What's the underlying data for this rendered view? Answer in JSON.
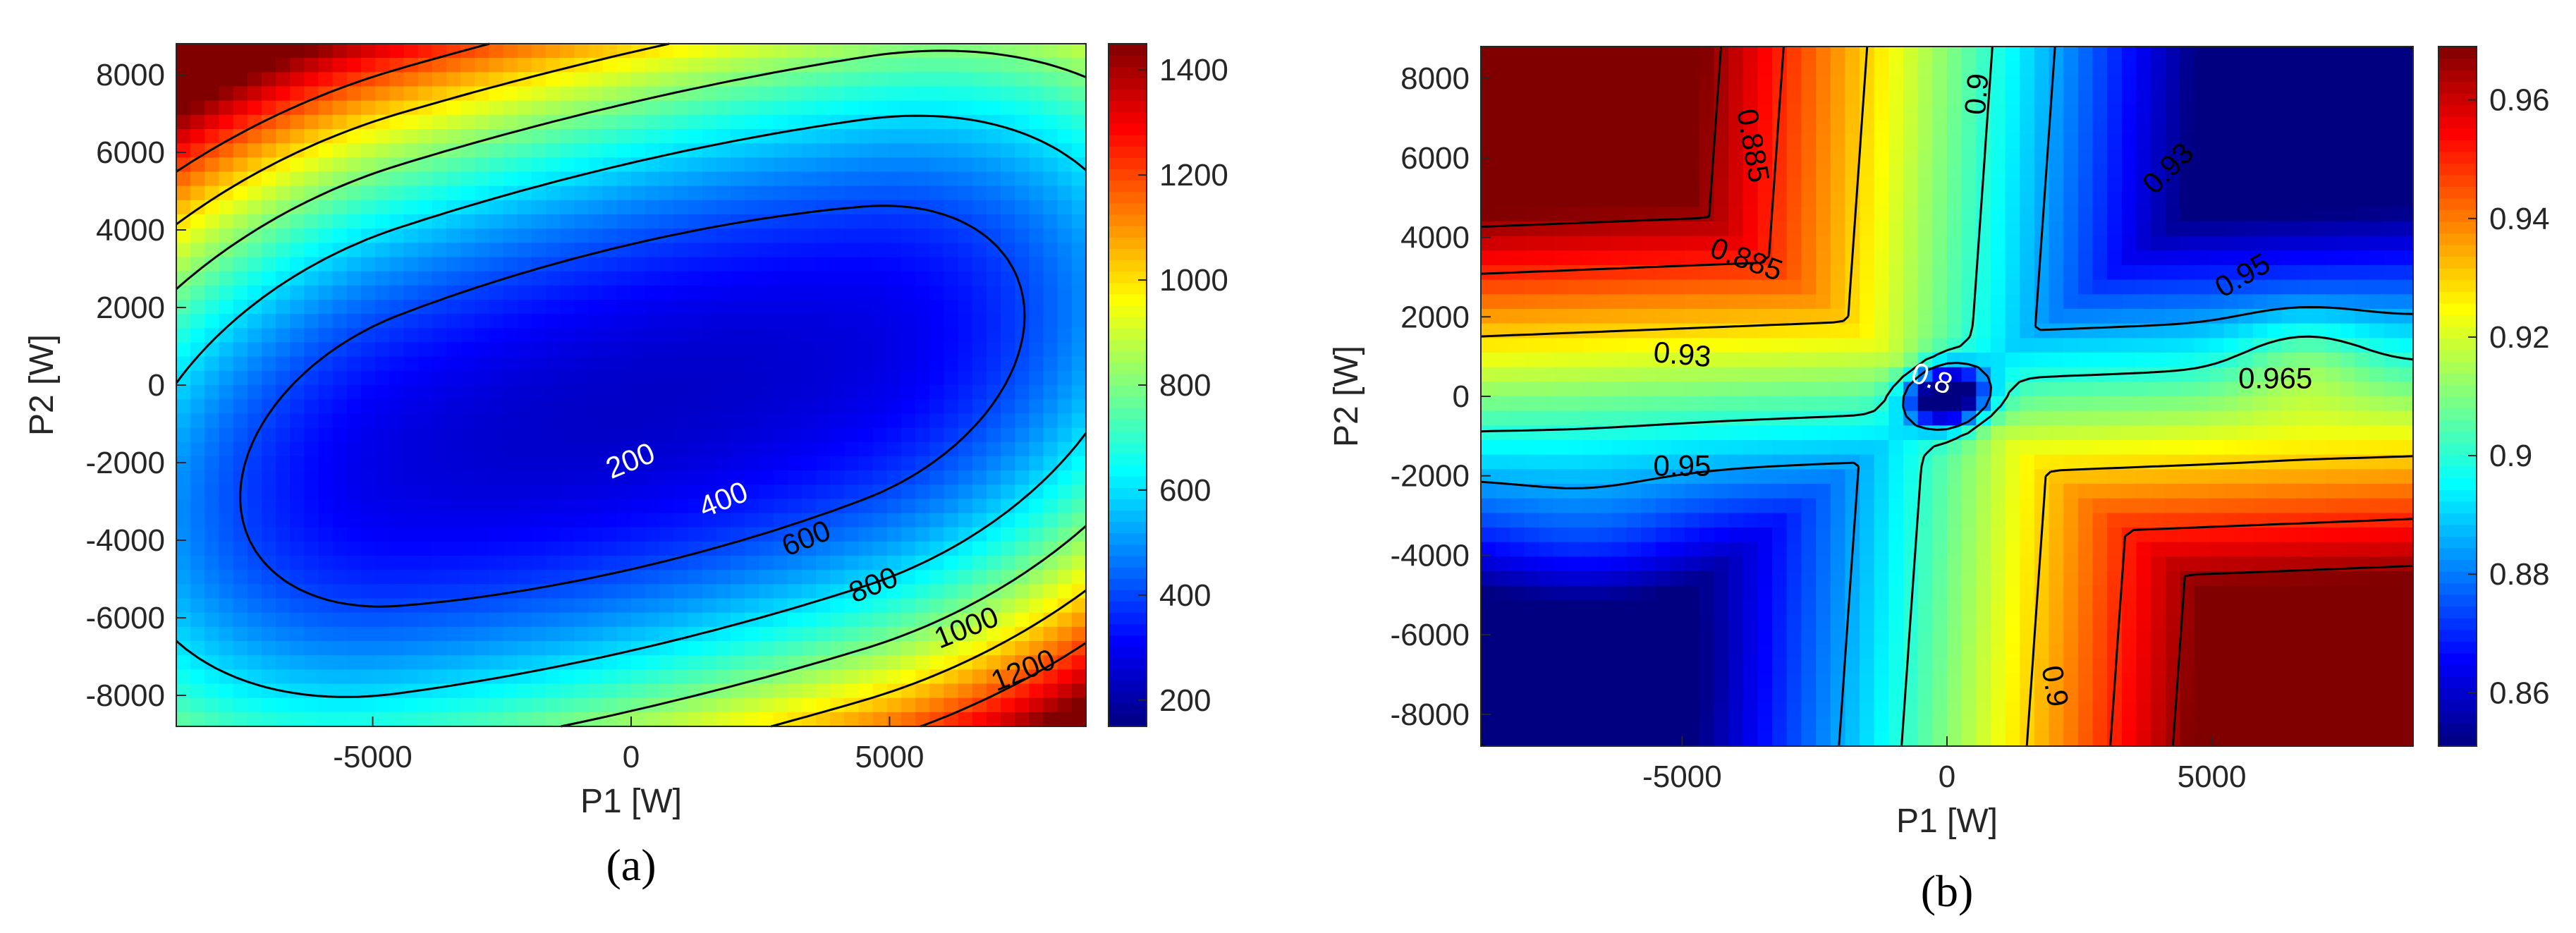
{
  "chart_data": [
    {
      "type": "heatmap",
      "panel_label": "(a)",
      "xlabel": "P1 [W]",
      "ylabel": "P2 [W]",
      "xlim": [
        -8800,
        8800
      ],
      "ylim": [
        -8800,
        8800
      ],
      "x_ticks": [
        -5000,
        0,
        5000
      ],
      "y_ticks": [
        -8000,
        -6000,
        -4000,
        -2000,
        0,
        2000,
        4000,
        6000,
        8000
      ],
      "colorbar": {
        "range": [
          150,
          1450
        ],
        "ticks": [
          200,
          400,
          600,
          800,
          1000,
          1200,
          1400
        ]
      },
      "colormap": "jet",
      "contour_levels": [
        200,
        400,
        600,
        800,
        1000,
        1200
      ],
      "contour_labels": [
        {
          "text": "200",
          "x": 0,
          "y": -2000,
          "color": "#ffffff"
        },
        {
          "text": "400",
          "x": 1800,
          "y": -3000,
          "color": "#ffffff"
        },
        {
          "text": "600",
          "x": 3400,
          "y": -4000,
          "color": "#000000"
        },
        {
          "text": "800",
          "x": 4700,
          "y": -5200,
          "color": "#000000"
        },
        {
          "text": "1000",
          "x": 6500,
          "y": -6300,
          "color": "#000000"
        },
        {
          "text": "1200",
          "x": 7600,
          "y": -7400,
          "color": "#000000"
        }
      ]
    },
    {
      "type": "heatmap",
      "panel_label": "(b)",
      "xlabel": "P1 [W]",
      "ylabel": "P2 [W]",
      "xlim": [
        -8800,
        8800
      ],
      "ylim": [
        -8800,
        8800
      ],
      "x_ticks": [
        -5000,
        0,
        5000
      ],
      "y_ticks": [
        -8000,
        -6000,
        -4000,
        -2000,
        0,
        2000,
        4000,
        6000,
        8000
      ],
      "colorbar": {
        "range": [
          0.851,
          0.969
        ],
        "ticks": [
          0.86,
          0.88,
          0.9,
          0.92,
          0.94,
          0.96
        ]
      },
      "colormap": "jet",
      "contour_levels": [
        0.8,
        0.885,
        0.9,
        0.93,
        0.95,
        0.965
      ],
      "contour_labels": [
        {
          "text": "0.885",
          "x": -3700,
          "y": 6300,
          "color": "#000000",
          "rotate": 80
        },
        {
          "text": "0.9",
          "x": 600,
          "y": 7600,
          "color": "#000000",
          "rotate": -85
        },
        {
          "text": "0.93",
          "x": 4200,
          "y": 5700,
          "color": "#000000",
          "rotate": -45
        },
        {
          "text": "0.885",
          "x": -3800,
          "y": 3400,
          "color": "#000000",
          "rotate": 20
        },
        {
          "text": "0.95",
          "x": 5600,
          "y": 3000,
          "color": "#000000",
          "rotate": -30
        },
        {
          "text": "0.93",
          "x": -5000,
          "y": 1000,
          "color": "#000000",
          "rotate": 5
        },
        {
          "text": "0.8",
          "x": -300,
          "y": 400,
          "color": "#ffffff",
          "rotate": 20
        },
        {
          "text": "0.965",
          "x": 6200,
          "y": 400,
          "color": "#000000",
          "rotate": 0
        },
        {
          "text": "0.95",
          "x": -5000,
          "y": -1800,
          "color": "#000000",
          "rotate": 0
        },
        {
          "text": "0.9",
          "x": 2000,
          "y": -7300,
          "color": "#000000",
          "rotate": 80
        }
      ]
    }
  ]
}
